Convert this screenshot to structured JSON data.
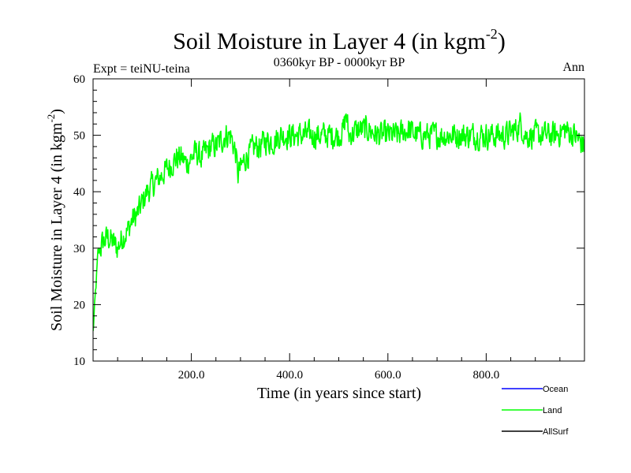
{
  "chart_data": {
    "type": "line",
    "title": "Soil Moisture in Layer 4 (in kgm",
    "title_sup": "-2",
    "title_close": ")",
    "subtitle": "0360kyr BP - 0000kyr BP",
    "left_label": "Expt = teiNU-teina",
    "right_label": "Ann",
    "xlabel": "Time (in years since start)",
    "ylabel": "Soil Moisture in Layer 4 (in kgm",
    "ylabel_sup": "-2",
    "ylabel_close": ")",
    "xlim": [
      0,
      1000
    ],
    "ylim": [
      10,
      60
    ],
    "xticks": [
      200,
      400,
      600,
      800
    ],
    "xtick_labels": [
      "200.0",
      "400.0",
      "600.0",
      "800.0"
    ],
    "yticks": [
      10,
      20,
      30,
      40,
      50,
      60
    ],
    "ytick_labels": [
      "10",
      "20",
      "30",
      "40",
      "50",
      "60"
    ],
    "legend": [
      {
        "name": "Ocean",
        "color": "#0000ff"
      },
      {
        "name": "Land",
        "color": "#00ff00"
      },
      {
        "name": "AllSurf",
        "color": "#000000"
      }
    ],
    "series": [
      {
        "name": "Land",
        "color": "#00ff00",
        "x": [
          0,
          5,
          10,
          20,
          30,
          40,
          50,
          60,
          70,
          80,
          90,
          100,
          110,
          120,
          130,
          140,
          150,
          160,
          170,
          180,
          190,
          200,
          210,
          220,
          230,
          240,
          250,
          260,
          270,
          280,
          290,
          295,
          300,
          305,
          310,
          320,
          330,
          340,
          350,
          360,
          370,
          380,
          390,
          400,
          420,
          440,
          460,
          480,
          500,
          510,
          515,
          520,
          540,
          560,
          580,
          600,
          620,
          640,
          660,
          680,
          700,
          720,
          740,
          760,
          780,
          800,
          820,
          840,
          860,
          870,
          880,
          900,
          920,
          940,
          960,
          980,
          990,
          1000
        ],
        "values": [
          15,
          22,
          29,
          31,
          32,
          31,
          30,
          32,
          33,
          35,
          36,
          38,
          40,
          41,
          42,
          43,
          44,
          45,
          46,
          46,
          45,
          46,
          47,
          46,
          47,
          48,
          48,
          49,
          50,
          50,
          47,
          43,
          44,
          45,
          46,
          47,
          48,
          48,
          49,
          49,
          49,
          50,
          50,
          50,
          50,
          50,
          50,
          50,
          50,
          51,
          54,
          50,
          51,
          51,
          50,
          50,
          50,
          51,
          50,
          50,
          50,
          50,
          50,
          50,
          50,
          50,
          50,
          50,
          51,
          52,
          50,
          50,
          50,
          50,
          51,
          50,
          49,
          48
        ],
        "noise_amplitude": 3.2
      }
    ]
  }
}
